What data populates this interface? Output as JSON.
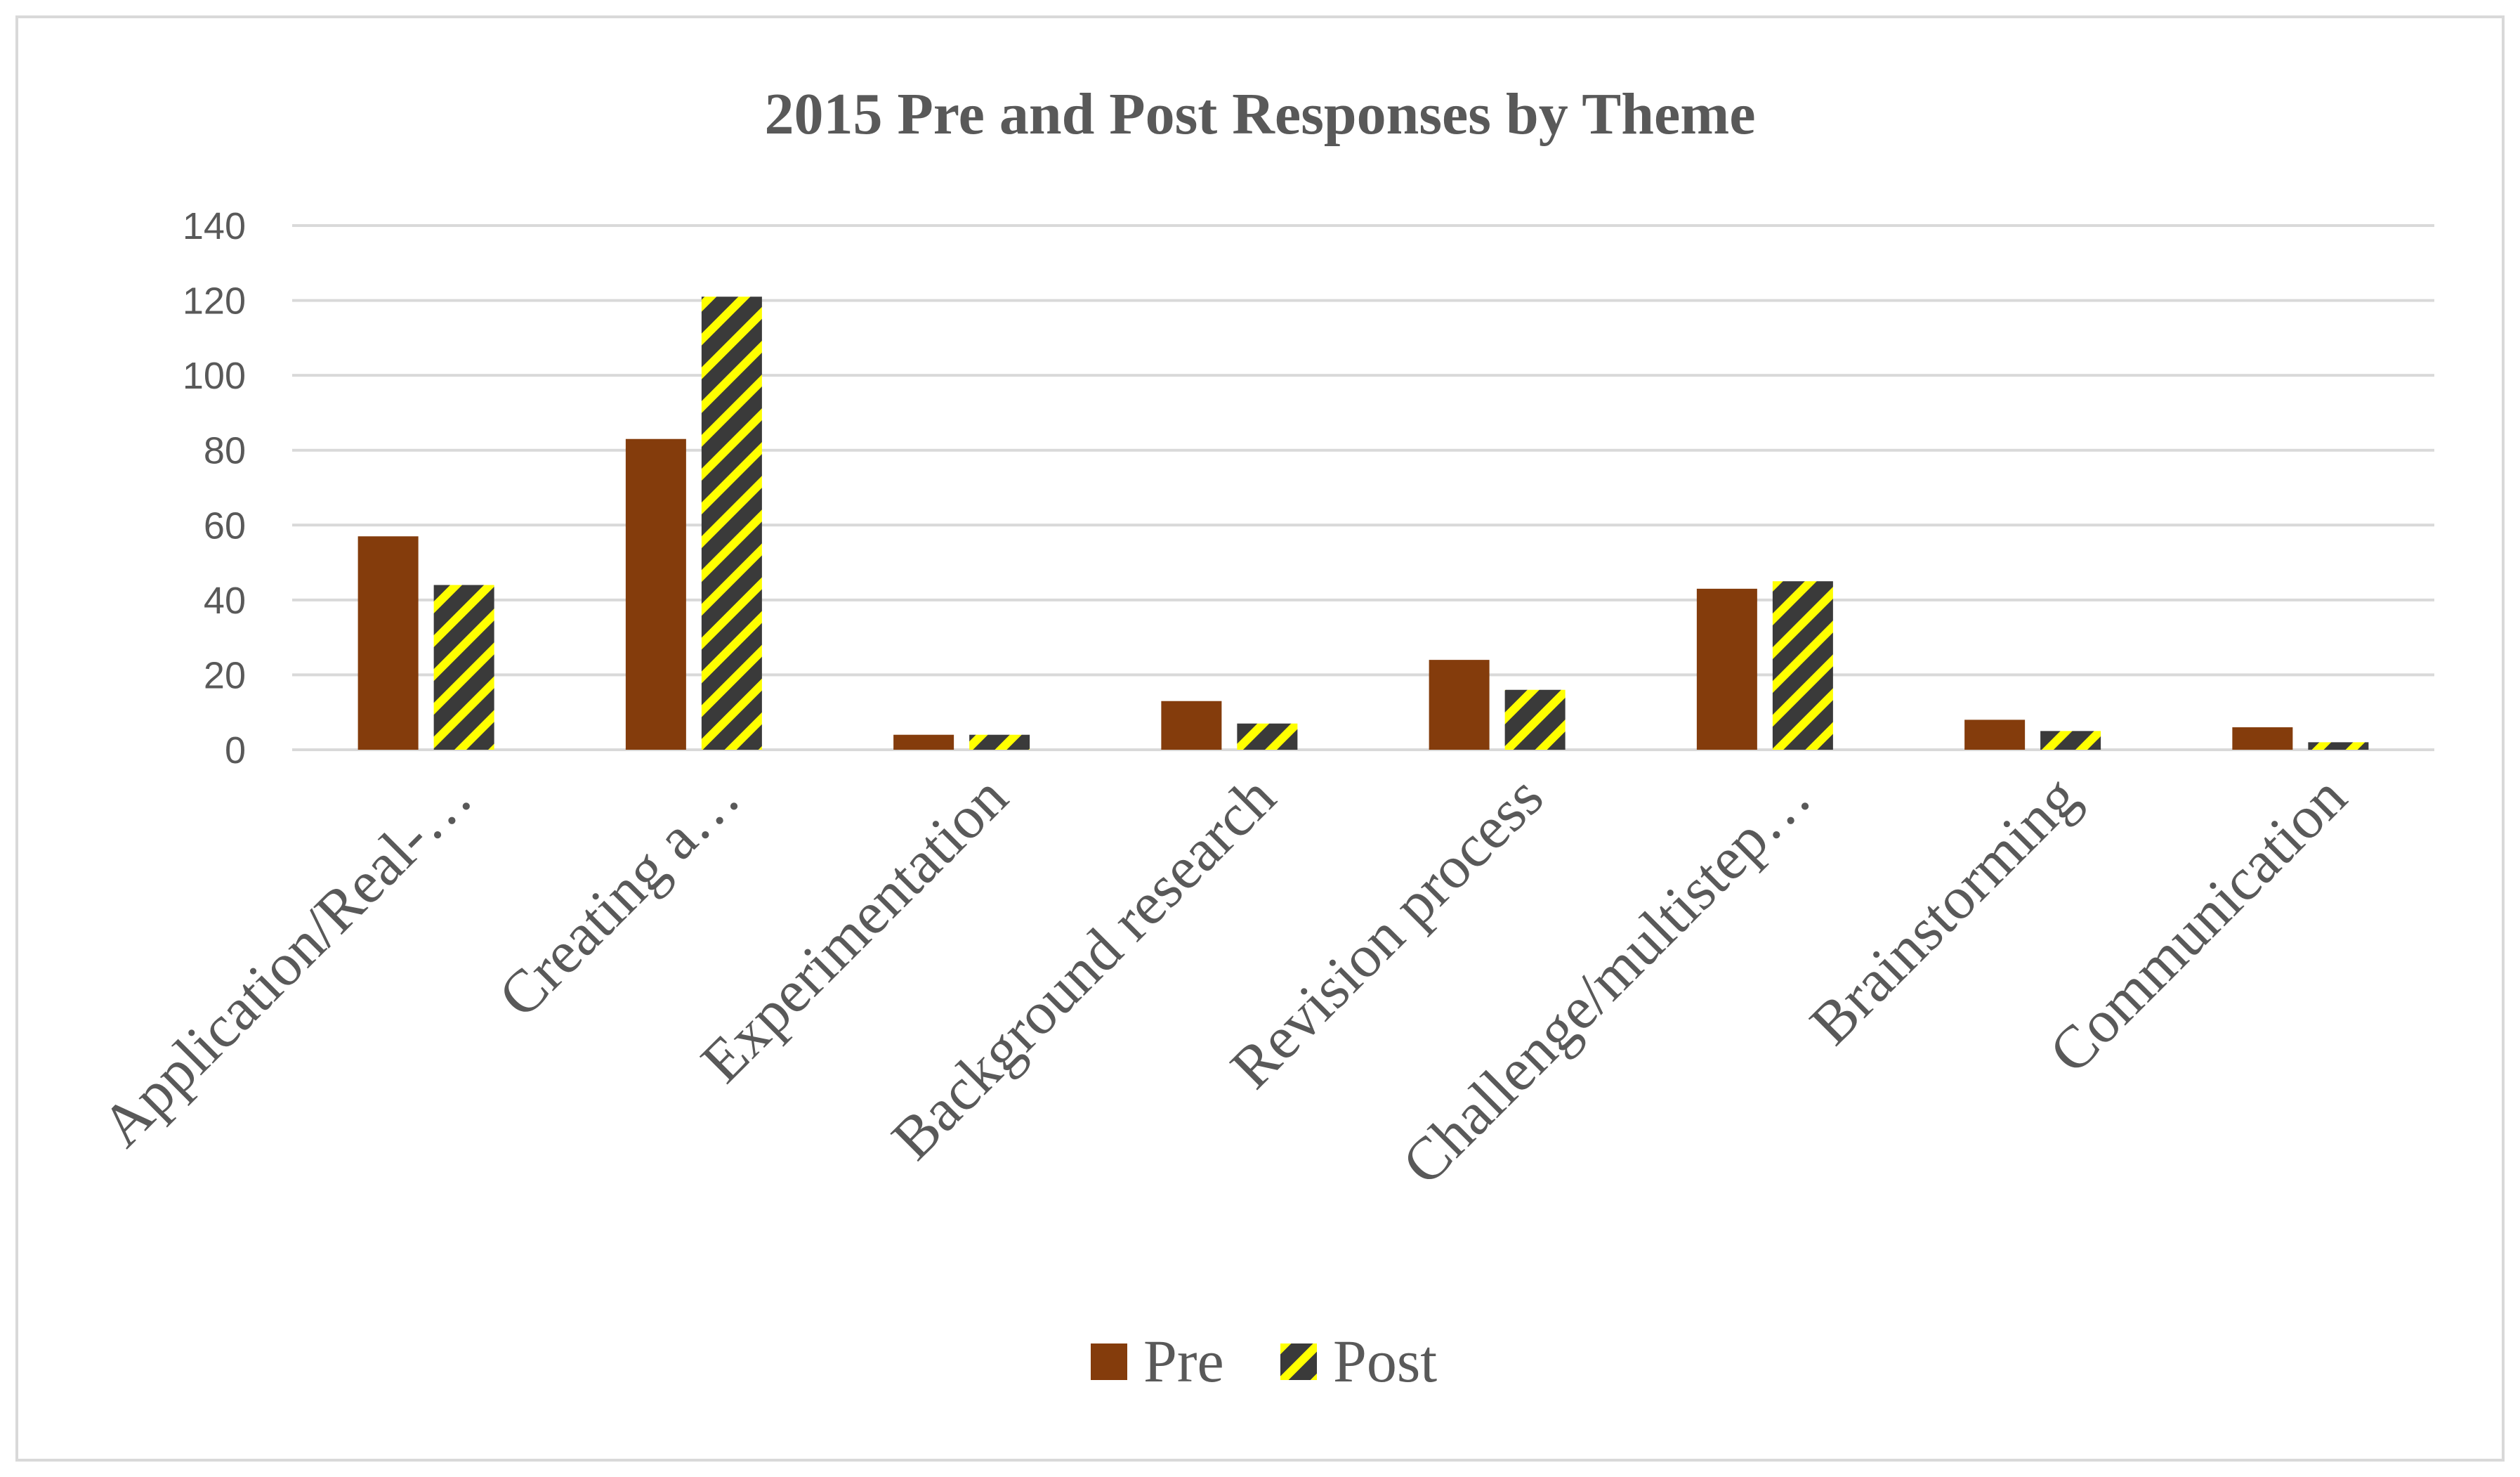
{
  "chart_data": {
    "type": "bar",
    "title": "2015 Pre and Post Responses by Theme",
    "xlabel": "",
    "ylabel": "",
    "ylim": [
      0,
      140
    ],
    "yticks": [
      0,
      20,
      40,
      60,
      80,
      100,
      120,
      140
    ],
    "grid": true,
    "legend_position": "bottom",
    "categories": [
      "Application/Real-…",
      "Creating a…",
      "Experimentation",
      "Background research",
      "Revision process",
      "Challenge/multistep…",
      "Brainstorming",
      "Communication"
    ],
    "series": [
      {
        "name": "Pre",
        "color": "#843c0c",
        "pattern": "solid",
        "values": [
          57,
          83,
          4,
          13,
          24,
          43,
          8,
          6
        ]
      },
      {
        "name": "Post",
        "color": "#ffff00",
        "pattern_color": "#3a3a3a",
        "pattern": "diagonal-stripes",
        "values": [
          44,
          121,
          4,
          7,
          16,
          45,
          5,
          2
        ]
      }
    ]
  }
}
